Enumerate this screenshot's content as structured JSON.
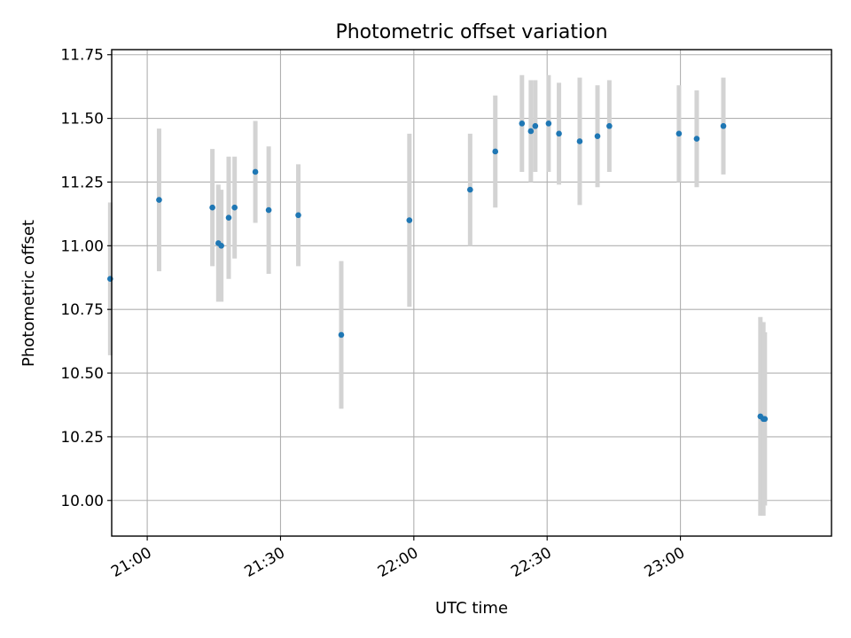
{
  "chart_data": {
    "type": "scatter",
    "title": "Photometric offset variation",
    "xlabel": "UTC time",
    "ylabel": "Photometric offset",
    "x_ticks": [
      "21:00",
      "21:30",
      "22:00",
      "22:30",
      "23:00"
    ],
    "y_ticks": [
      "10.00",
      "10.25",
      "10.50",
      "10.75",
      "11.00",
      "11.25",
      "11.50",
      "11.75"
    ],
    "xlim": [
      "20:52",
      "23:34"
    ],
    "ylim": [
      9.86,
      11.77
    ],
    "grid": true,
    "colors": {
      "points": "#1f77b4",
      "errorbars": "#d3d3d3"
    },
    "points": [
      {
        "x": "20:51:40",
        "y": 10.87,
        "err": 0.3
      },
      {
        "x": "21:02:40",
        "y": 11.18,
        "err": 0.28
      },
      {
        "x": "21:14:40",
        "y": 11.15,
        "err": 0.23
      },
      {
        "x": "21:16:00",
        "y": 11.01,
        "err": 0.23
      },
      {
        "x": "21:16:40",
        "y": 11.0,
        "err": 0.22
      },
      {
        "x": "21:18:20",
        "y": 11.11,
        "err": 0.24
      },
      {
        "x": "21:19:40",
        "y": 11.15,
        "err": 0.2
      },
      {
        "x": "21:24:20",
        "y": 11.29,
        "err": 0.2
      },
      {
        "x": "21:27:20",
        "y": 11.14,
        "err": 0.25
      },
      {
        "x": "21:34:00",
        "y": 11.12,
        "err": 0.2
      },
      {
        "x": "21:43:40",
        "y": 10.65,
        "err": 0.29
      },
      {
        "x": "21:59:00",
        "y": 11.1,
        "err": 0.34
      },
      {
        "x": "22:12:40",
        "y": 11.22,
        "err": 0.22
      },
      {
        "x": "22:18:20",
        "y": 11.37,
        "err": 0.22
      },
      {
        "x": "22:24:20",
        "y": 11.48,
        "err": 0.19
      },
      {
        "x": "22:26:20",
        "y": 11.45,
        "err": 0.2
      },
      {
        "x": "22:27:20",
        "y": 11.47,
        "err": 0.18
      },
      {
        "x": "22:30:20",
        "y": 11.48,
        "err": 0.19
      },
      {
        "x": "22:32:40",
        "y": 11.44,
        "err": 0.2
      },
      {
        "x": "22:37:20",
        "y": 11.41,
        "err": 0.25
      },
      {
        "x": "22:41:20",
        "y": 11.43,
        "err": 0.2
      },
      {
        "x": "22:44:00",
        "y": 11.47,
        "err": 0.18
      },
      {
        "x": "22:59:40",
        "y": 11.44,
        "err": 0.19
      },
      {
        "x": "23:03:40",
        "y": 11.42,
        "err": 0.19
      },
      {
        "x": "23:09:40",
        "y": 11.47,
        "err": 0.19
      },
      {
        "x": "23:18:00",
        "y": 10.33,
        "err": 0.39
      },
      {
        "x": "23:18:40",
        "y": 10.32,
        "err": 0.38
      },
      {
        "x": "23:19:00",
        "y": 10.32,
        "err": 0.34
      }
    ]
  }
}
